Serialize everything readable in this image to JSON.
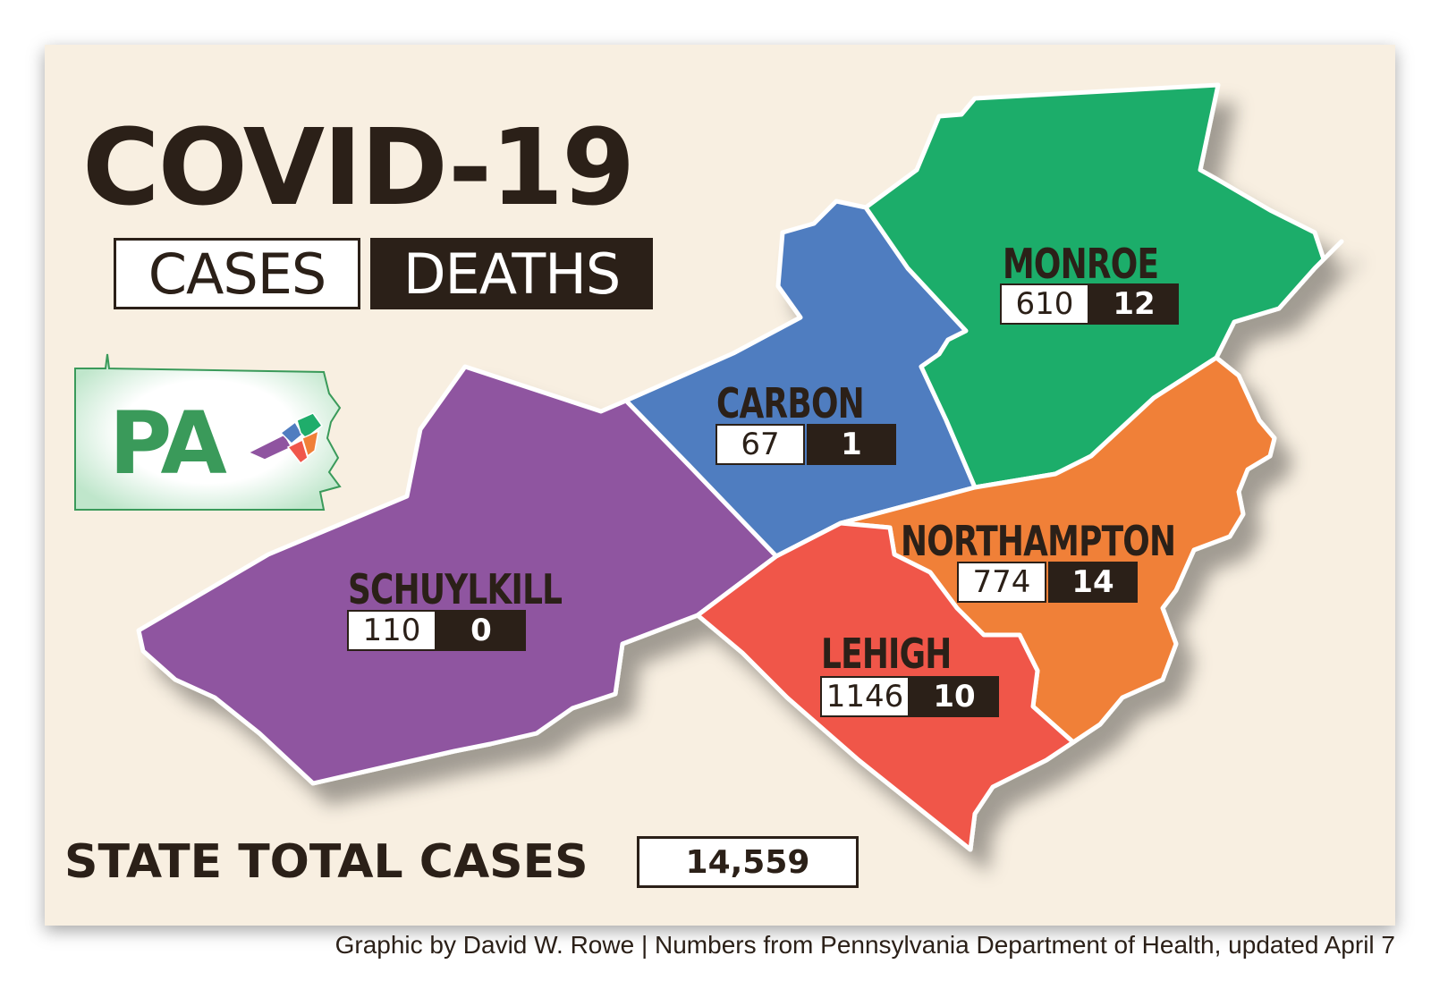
{
  "title": "COVID-19",
  "legend": {
    "cases_label": "CASES",
    "deaths_label": "DEATHS"
  },
  "state_badge": {
    "text": "PA"
  },
  "counties": [
    {
      "name": "MONROE",
      "cases": "610",
      "deaths": "12",
      "color": "#1fad6b"
    },
    {
      "name": "CARBON",
      "cases": "67",
      "deaths": "1",
      "color": "#507dc0"
    },
    {
      "name": "SCHUYLKILL",
      "cases": "110",
      "deaths": "0",
      "color": "#8f54a0"
    },
    {
      "name": "NORTHAMPTON",
      "cases": "774",
      "deaths": "14",
      "color": "#f08038"
    },
    {
      "name": "LEHIGH",
      "cases": "1146",
      "deaths": "10",
      "color": "#f0564a"
    }
  ],
  "state_total": {
    "label": "STATE TOTAL CASES",
    "value": "14,559"
  },
  "credit": "Graphic by David W. Rowe | Numbers from Pennsylvania Department of Health, updated April 7"
}
